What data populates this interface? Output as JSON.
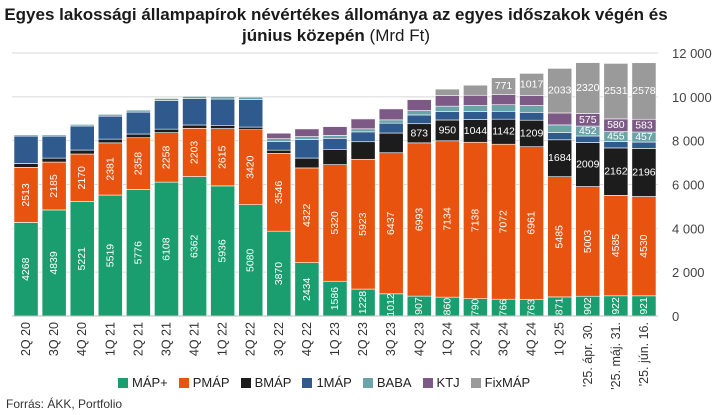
{
  "title_main": "Egyes lakossági állampapírok névértékes állománya az egyes időszakok végén és június közepén",
  "title_unit": "(Mrd Ft)",
  "source": "Forrás: ÁKK, Portfolio",
  "chart_data": {
    "type": "bar",
    "stacked": true,
    "title": "Egyes lakossági állampapírok névértékes állománya az egyes időszakok végén és június közepén (Mrd Ft)",
    "categories": [
      "2Q 20",
      "3Q 20",
      "4Q 20",
      "1Q 21",
      "2Q 21",
      "3Q 21",
      "4Q 21",
      "1Q 22",
      "2Q 22",
      "3Q 22",
      "4Q 22",
      "1Q 23",
      "2Q 23",
      "3Q 23",
      "4Q 23",
      "1Q 24",
      "2Q 24",
      "3Q 24",
      "4Q 24",
      "1Q 25",
      "'25. ápr. 30.",
      "'25. máj. 31.",
      "'25. jún. 16."
    ],
    "ylim": [
      0,
      12000
    ],
    "yticks": [
      0,
      2000,
      4000,
      6000,
      8000,
      10000,
      12000
    ],
    "ytick_labels": [
      "0",
      "2 000",
      "4 000",
      "6 000",
      "8 000",
      "10 000",
      "12 000"
    ],
    "y_axis_side": "right",
    "grid": true,
    "legend_position": "bottom",
    "series": [
      {
        "name": "MÁP+",
        "color": "#1a9e6f",
        "values": [
          4268,
          4839,
          5221,
          5519,
          5776,
          6108,
          6362,
          5936,
          5080,
          3870,
          2434,
          1586,
          1228,
          1012,
          907,
          860,
          790,
          766,
          763,
          871,
          902,
          922,
          921
        ],
        "labels": [
          "4268",
          "4839",
          "5221",
          "5519",
          "5776",
          "6108",
          "6362",
          "5936",
          "5080",
          "3870",
          "2434",
          "1586",
          "1228",
          "1012",
          "907",
          "860",
          "790",
          "766",
          "763",
          "871",
          "902",
          "922",
          "921"
        ]
      },
      {
        "name": "PMÁP",
        "color": "#e8540f",
        "values": [
          2513,
          2185,
          2170,
          2381,
          2358,
          2258,
          2203,
          2615,
          3420,
          3546,
          4322,
          5320,
          5923,
          6437,
          6993,
          7134,
          7138,
          7072,
          6961,
          5485,
          5003,
          4585,
          4530
        ],
        "labels": [
          "2513",
          "2185",
          "2170",
          "2381",
          "2358",
          "2258",
          "2203",
          "2615",
          "3420",
          "3546",
          "4322",
          "5320",
          "5923",
          "6437",
          "6993",
          "7134",
          "7138",
          "7072",
          "6961",
          "5485",
          "5003",
          "4585",
          "4530"
        ]
      },
      {
        "name": "BMÁP",
        "color": "#1c1c1c",
        "values": [
          180,
          180,
          180,
          170,
          170,
          160,
          150,
          150,
          120,
          150,
          450,
          700,
          800,
          900,
          873,
          950,
          1044,
          1142,
          1209,
          1684,
          2009,
          2162,
          2196
        ],
        "labels": [
          "",
          "",
          "",
          "",
          "",
          "",
          "",
          "",
          "",
          "",
          "",
          "",
          "",
          "",
          "873",
          "950",
          "1044",
          "1142",
          "1209",
          "1684",
          "2009",
          "2162",
          "2196"
        ]
      },
      {
        "name": "1MÁP",
        "color": "#2f5a8e",
        "values": [
          1250,
          1000,
          1100,
          1050,
          1000,
          1300,
          1200,
          1200,
          1250,
          400,
          850,
          500,
          450,
          450,
          400,
          380,
          360,
          360,
          360,
          330,
          300,
          290,
          290
        ],
        "labels": [
          "",
          "",
          "",
          "",
          "",
          "",
          "",
          "",
          "",
          "",
          "",
          "",
          "",
          "",
          "",
          "",
          "",
          "",
          "",
          "",
          "",
          "",
          ""
        ]
      },
      {
        "name": "BABA",
        "color": "#6aa3a8",
        "values": [
          60,
          60,
          70,
          80,
          90,
          100,
          110,
          115,
          120,
          125,
          130,
          135,
          140,
          150,
          200,
          250,
          270,
          300,
          310,
          350,
          452,
          455,
          457
        ],
        "labels": [
          "",
          "",
          "",
          "",
          "",
          "",
          "",
          "",
          "",
          "",
          "",
          "",
          "",
          "",
          "",
          "",
          "",
          "",
          "",
          "",
          "452",
          "455",
          "457"
        ]
      },
      {
        "name": "KTJ",
        "color": "#7d5a86",
        "values": [
          0,
          0,
          0,
          0,
          0,
          0,
          0,
          0,
          0,
          250,
          350,
          400,
          450,
          500,
          500,
          480,
          470,
          460,
          450,
          545,
          575,
          580,
          583
        ],
        "labels": [
          "",
          "",
          "",
          "",
          "",
          "",
          "",
          "",
          "",
          "",
          "",
          "",
          "",
          "",
          "",
          "",
          "",
          "",
          "",
          "",
          "575",
          "580",
          "583"
        ]
      },
      {
        "name": "FixMÁP",
        "color": "#9a9a9a",
        "values": [
          0,
          0,
          0,
          0,
          0,
          0,
          0,
          0,
          0,
          0,
          0,
          0,
          0,
          0,
          0,
          300,
          460,
          771,
          1017,
          2033,
          2320,
          2531,
          2578
        ],
        "labels": [
          "",
          "",
          "",
          "",
          "",
          "",
          "",
          "",
          "",
          "",
          "",
          "",
          "",
          "",
          "",
          "",
          "",
          "771",
          "1017",
          "2033",
          "2320",
          "2531",
          "2578"
        ]
      }
    ]
  }
}
